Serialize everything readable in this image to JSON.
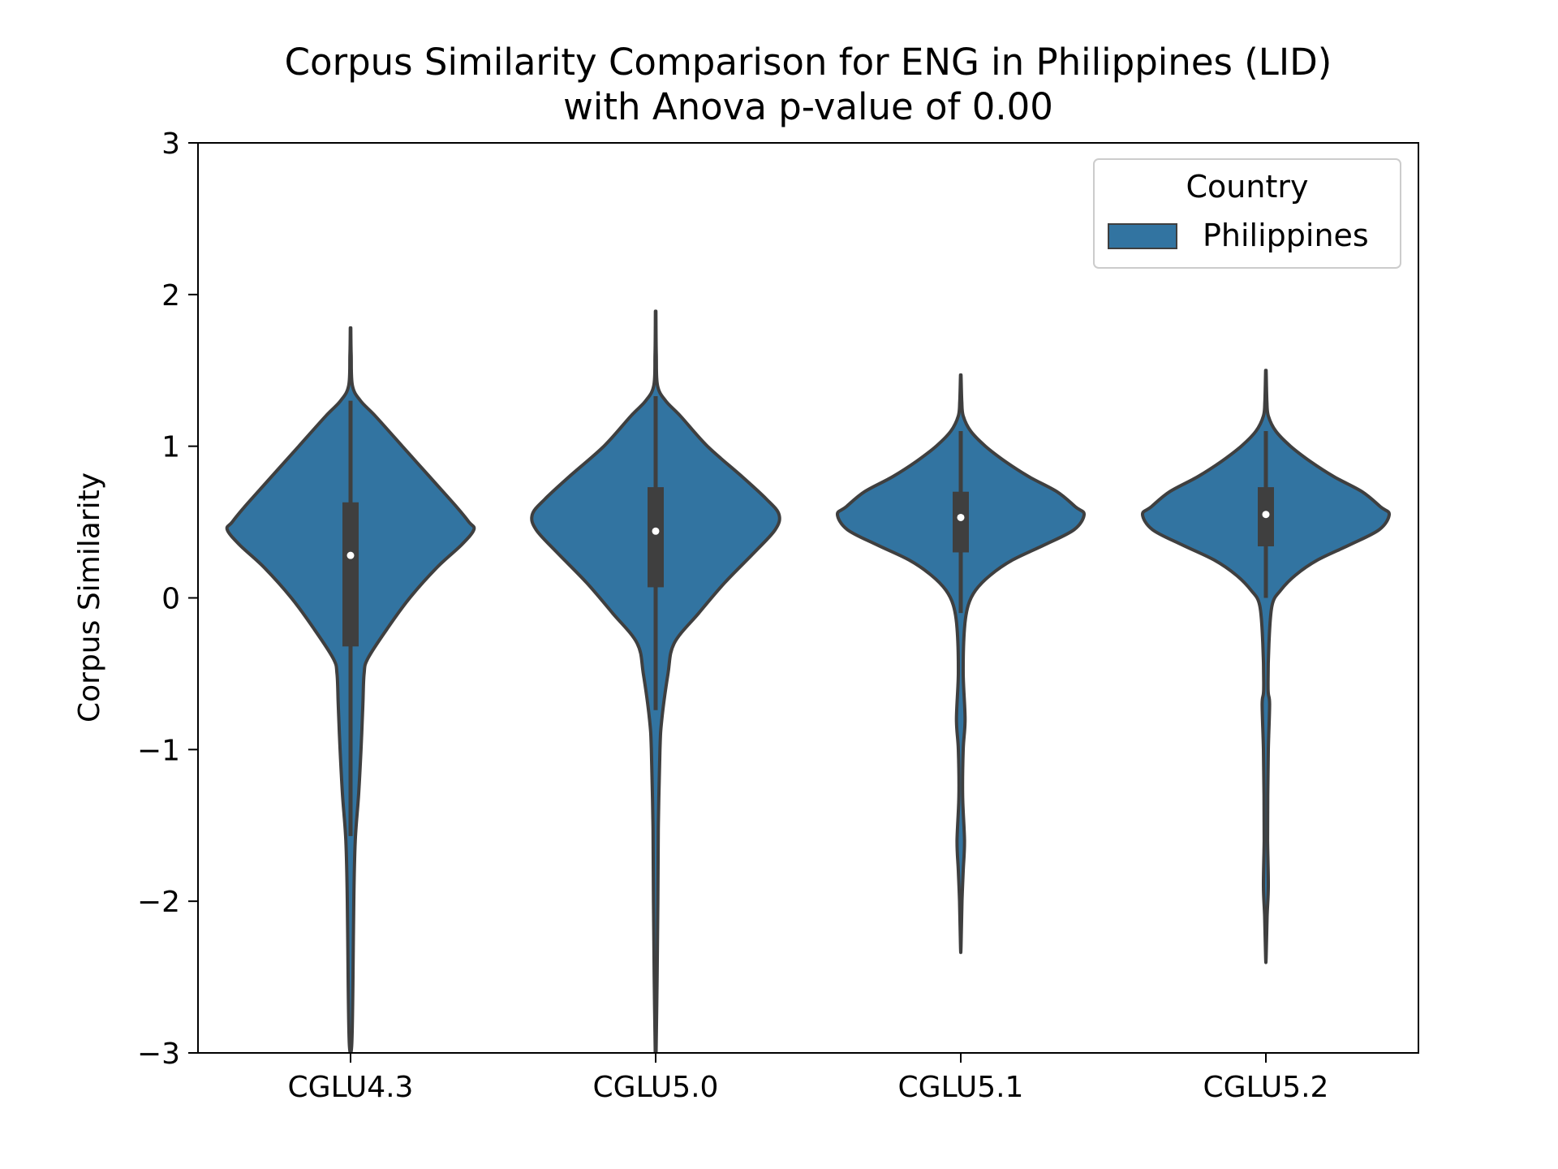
{
  "chart_data": {
    "type": "violin",
    "title_line1": "Corpus Similarity Comparison for ENG in Philippines (LID)",
    "title_line2": "with Anova p-value of 0.00",
    "xlabel": "",
    "ylabel": "Corpus Similarity",
    "ylim": [
      -3,
      3
    ],
    "y_ticks": [
      -3,
      -2,
      -1,
      0,
      1,
      2,
      3
    ],
    "y_tick_labels": [
      "−3",
      "−2",
      "−1",
      "0",
      "1",
      "2",
      "3"
    ],
    "categories": [
      "CGLU4.3",
      "CGLU5.0",
      "CGLU5.1",
      "CGLU5.2"
    ],
    "legend": {
      "title": "Country",
      "entries": [
        "Philippines"
      ],
      "placement": "top-right"
    },
    "fill_color": "#3274a1",
    "edge_color": "#3f3f3f",
    "grid": false,
    "series": [
      {
        "name": "Philippines",
        "violins": [
          {
            "category": "CGLU4.3",
            "median": 0.28,
            "q1": -0.32,
            "q3": 0.63,
            "whisker_low": -1.57,
            "whisker_high": 1.3,
            "min": -3.0,
            "max": 1.78,
            "density": [
              [
                1.78,
                0.002
              ],
              [
                1.6,
                0.005
              ],
              [
                1.4,
                0.015
              ],
              [
                1.3,
                0.08
              ],
              [
                1.2,
                0.2
              ],
              [
                1.0,
                0.42
              ],
              [
                0.8,
                0.64
              ],
              [
                0.6,
                0.86
              ],
              [
                0.5,
                0.96
              ],
              [
                0.45,
                1.0
              ],
              [
                0.35,
                0.9
              ],
              [
                0.2,
                0.7
              ],
              [
                0.0,
                0.48
              ],
              [
                -0.2,
                0.3
              ],
              [
                -0.4,
                0.14
              ],
              [
                -0.5,
                0.11
              ],
              [
                -0.7,
                0.1
              ],
              [
                -1.0,
                0.085
              ],
              [
                -1.3,
                0.065
              ],
              [
                -1.6,
                0.038
              ],
              [
                -2.0,
                0.026
              ],
              [
                -2.5,
                0.02
              ],
              [
                -2.9,
                0.012
              ],
              [
                -3.0,
                0.003
              ]
            ]
          },
          {
            "category": "CGLU5.0",
            "median": 0.44,
            "q1": 0.07,
            "q3": 0.73,
            "whisker_low": -0.74,
            "whisker_high": 1.33,
            "min": -3.0,
            "max": 1.89,
            "density": [
              [
                1.89,
                0.002
              ],
              [
                1.6,
                0.005
              ],
              [
                1.4,
                0.015
              ],
              [
                1.3,
                0.08
              ],
              [
                1.2,
                0.2
              ],
              [
                1.0,
                0.42
              ],
              [
                0.8,
                0.7
              ],
              [
                0.65,
                0.9
              ],
              [
                0.55,
                1.0
              ],
              [
                0.45,
                0.97
              ],
              [
                0.3,
                0.8
              ],
              [
                0.1,
                0.56
              ],
              [
                -0.1,
                0.35
              ],
              [
                -0.3,
                0.15
              ],
              [
                -0.5,
                0.1
              ],
              [
                -0.8,
                0.05
              ],
              [
                -1.0,
                0.035
              ],
              [
                -1.5,
                0.022
              ],
              [
                -2.0,
                0.018
              ],
              [
                -2.5,
                0.012
              ],
              [
                -3.0,
                0.003
              ]
            ]
          },
          {
            "category": "CGLU5.1",
            "median": 0.53,
            "q1": 0.3,
            "q3": 0.7,
            "whisker_low": -0.1,
            "whisker_high": 1.1,
            "min": -2.3,
            "max": 1.47,
            "density": [
              [
                1.47,
                0.002
              ],
              [
                1.3,
                0.008
              ],
              [
                1.2,
                0.02
              ],
              [
                1.1,
                0.08
              ],
              [
                1.0,
                0.2
              ],
              [
                0.9,
                0.36
              ],
              [
                0.8,
                0.55
              ],
              [
                0.7,
                0.78
              ],
              [
                0.6,
                0.93
              ],
              [
                0.55,
                1.0
              ],
              [
                0.45,
                0.92
              ],
              [
                0.35,
                0.68
              ],
              [
                0.25,
                0.42
              ],
              [
                0.15,
                0.24
              ],
              [
                0.05,
                0.12
              ],
              [
                -0.05,
                0.06
              ],
              [
                -0.2,
                0.03
              ],
              [
                -0.5,
                0.02
              ],
              [
                -0.8,
                0.035
              ],
              [
                -1.0,
                0.02
              ],
              [
                -1.3,
                0.015
              ],
              [
                -1.6,
                0.03
              ],
              [
                -1.8,
                0.02
              ],
              [
                -2.0,
                0.01
              ],
              [
                -2.3,
                0.002
              ]
            ]
          },
          {
            "category": "CGLU5.2",
            "median": 0.55,
            "q1": 0.34,
            "q3": 0.73,
            "whisker_low": 0.0,
            "whisker_high": 1.1,
            "min": -2.37,
            "max": 1.5,
            "density": [
              [
                1.5,
                0.002
              ],
              [
                1.3,
                0.008
              ],
              [
                1.2,
                0.02
              ],
              [
                1.1,
                0.08
              ],
              [
                1.0,
                0.2
              ],
              [
                0.9,
                0.36
              ],
              [
                0.8,
                0.55
              ],
              [
                0.7,
                0.78
              ],
              [
                0.6,
                0.93
              ],
              [
                0.55,
                1.0
              ],
              [
                0.45,
                0.92
              ],
              [
                0.35,
                0.68
              ],
              [
                0.25,
                0.42
              ],
              [
                0.15,
                0.24
              ],
              [
                0.05,
                0.12
              ],
              [
                -0.05,
                0.05
              ],
              [
                -0.3,
                0.025
              ],
              [
                -0.6,
                0.018
              ],
              [
                -0.7,
                0.03
              ],
              [
                -1.0,
                0.02
              ],
              [
                -1.3,
                0.015
              ],
              [
                -1.6,
                0.014
              ],
              [
                -1.9,
                0.02
              ],
              [
                -2.1,
                0.01
              ],
              [
                -2.37,
                0.002
              ]
            ]
          }
        ]
      }
    ]
  }
}
